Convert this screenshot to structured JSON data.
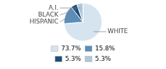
{
  "chart_data": {
    "type": "pie",
    "categories": [
      "WHITE",
      "HISPANIC",
      "BLACK",
      "A.I."
    ],
    "values": [
      73.7,
      15.8,
      5.3,
      5.3
    ],
    "value_labels": [
      "73.7%",
      "15.8%",
      "5.3%",
      "5.3%"
    ],
    "colors": [
      "#d6e4f0",
      "#5b8db8",
      "#1e4d7a",
      "#b0c8d8"
    ],
    "legend": "bottom"
  }
}
